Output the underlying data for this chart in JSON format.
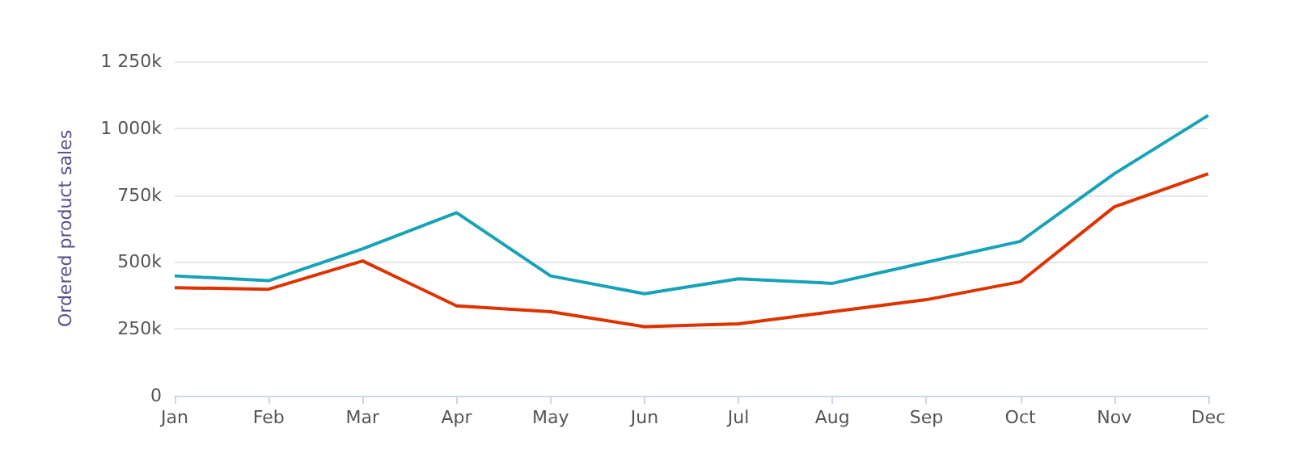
{
  "chart_data": {
    "type": "line",
    "ylabel": "Ordered product sales",
    "categories": [
      "Jan",
      "Feb",
      "Mar",
      "Apr",
      "May",
      "Jun",
      "Jul",
      "Aug",
      "Sep",
      "Oct",
      "Nov",
      "Dec"
    ],
    "series": [
      {
        "color": "#17a2b8",
        "values": [
          448000,
          430000,
          549000,
          684000,
          448000,
          381000,
          437000,
          420000,
          499000,
          577000,
          830000,
          1048000
        ]
      },
      {
        "color": "#dd3300",
        "values": [
          404000,
          398000,
          504000,
          336000,
          314000,
          258000,
          269000,
          314000,
          359000,
          426000,
          706000,
          830000
        ]
      }
    ],
    "ylim": [
      0,
      1250000
    ],
    "yticks": [
      0,
      {
        "value": 250000,
        "label": "250k"
      },
      {
        "value": 500000,
        "label": "500k"
      },
      {
        "value": 750000,
        "label": "750k"
      },
      {
        "value": 1000000,
        "label": "1 000k"
      },
      {
        "value": 1250000,
        "label": "1 250k"
      }
    ],
    "grid": "y",
    "marker": "none",
    "line_style": "solid"
  }
}
